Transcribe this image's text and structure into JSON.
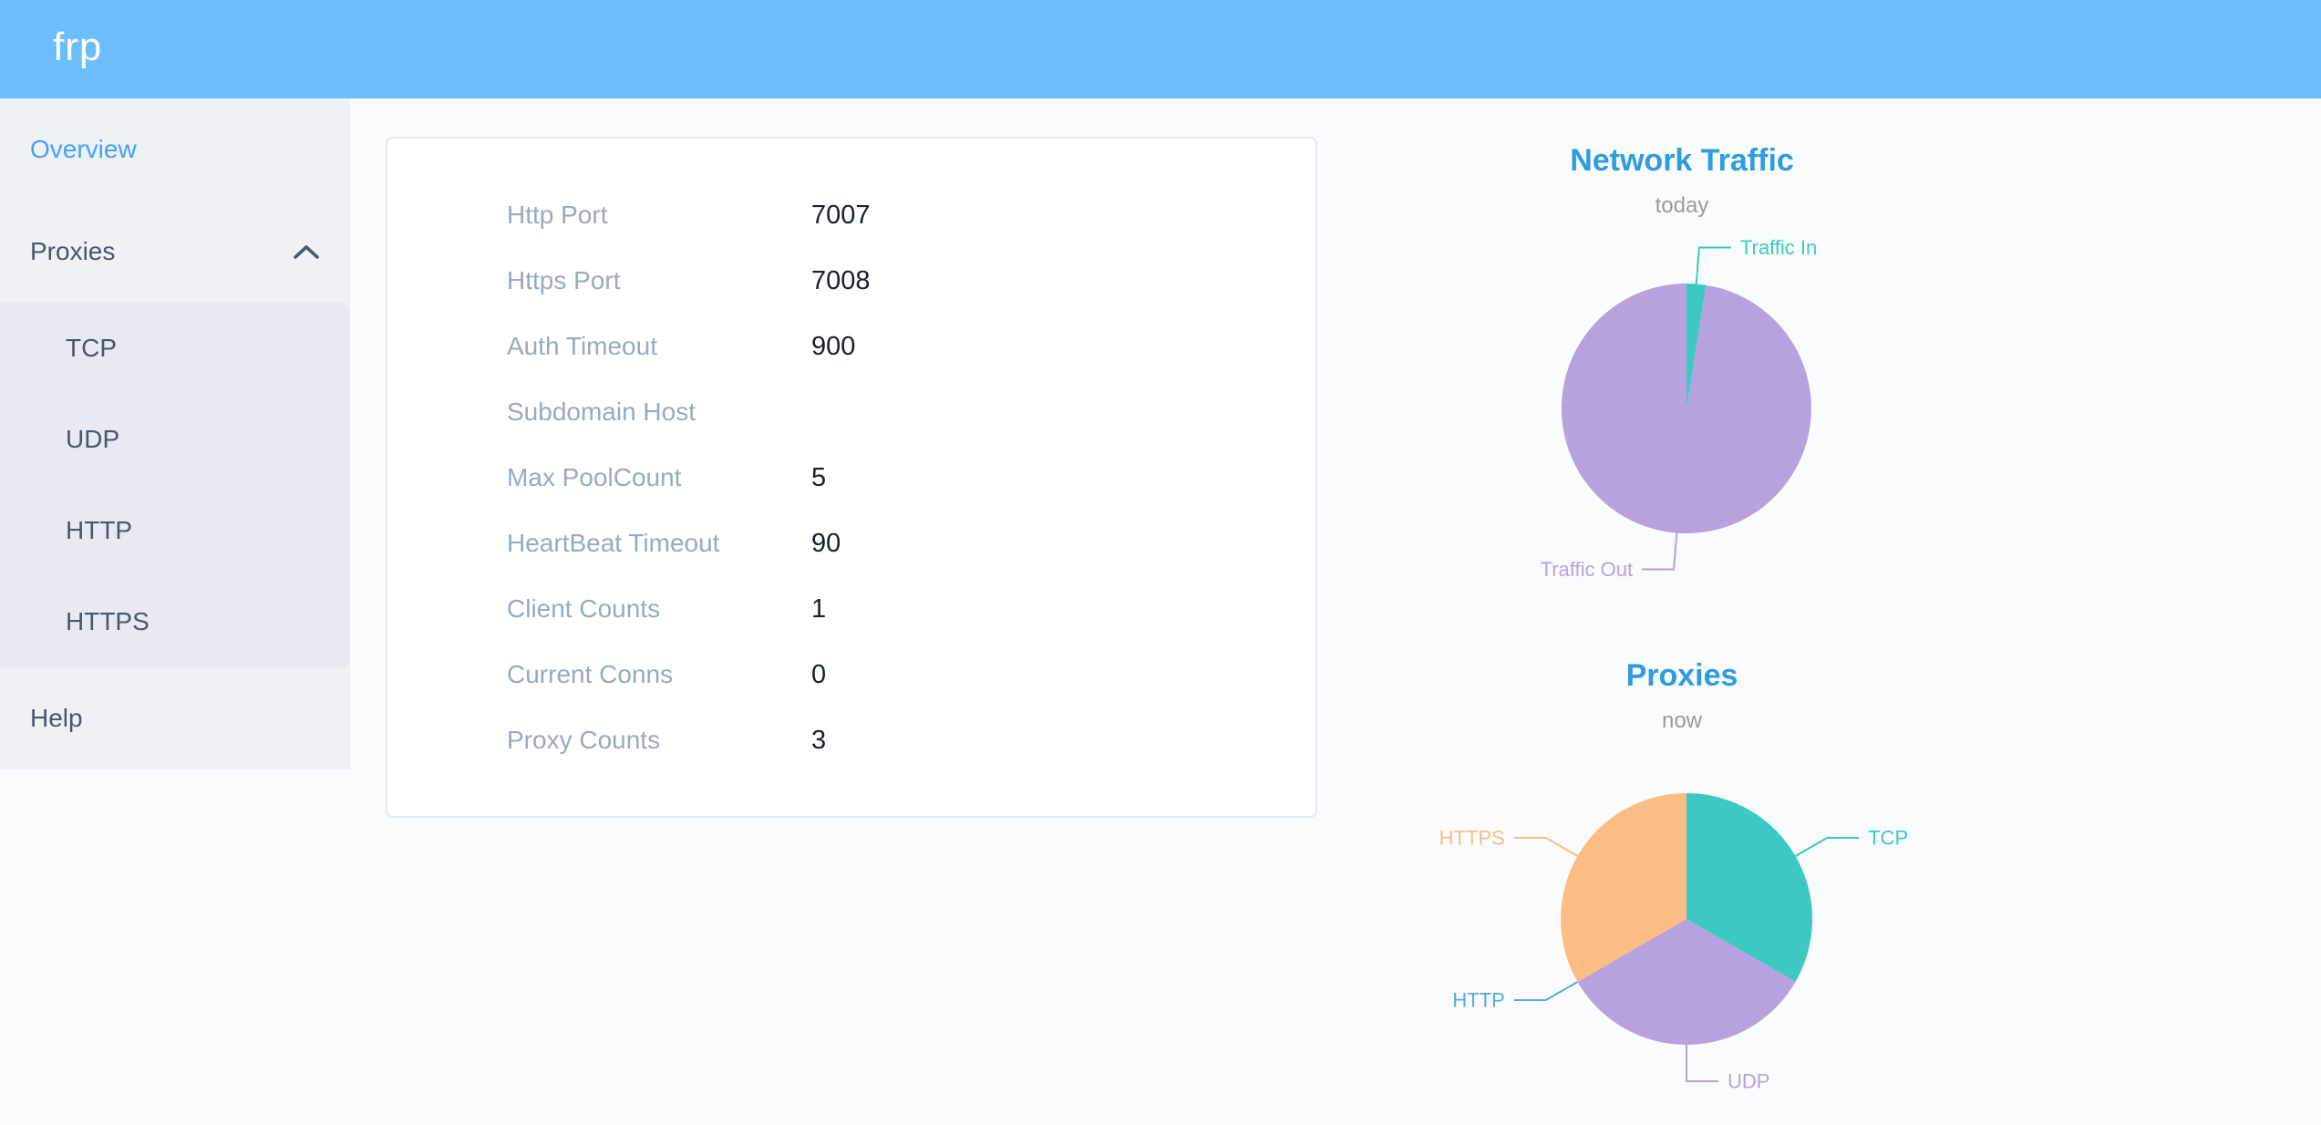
{
  "header": {
    "logo": "frp"
  },
  "sidebar": {
    "items": [
      {
        "label": "Overview",
        "active": true
      },
      {
        "label": "Proxies",
        "expanded": true,
        "children": [
          {
            "label": "TCP"
          },
          {
            "label": "UDP"
          },
          {
            "label": "HTTP"
          },
          {
            "label": "HTTPS"
          }
        ]
      },
      {
        "label": "Help"
      }
    ]
  },
  "overview_card": {
    "fields": [
      {
        "label": "Http Port",
        "value": "7007"
      },
      {
        "label": "Https Port",
        "value": "7008"
      },
      {
        "label": "Auth Timeout",
        "value": "900"
      },
      {
        "label": "Subdomain Host",
        "value": ""
      },
      {
        "label": "Max PoolCount",
        "value": "5"
      },
      {
        "label": "HeartBeat Timeout",
        "value": "90"
      },
      {
        "label": "Client Counts",
        "value": "1"
      },
      {
        "label": "Current Conns",
        "value": "0"
      },
      {
        "label": "Proxy Counts",
        "value": "3"
      }
    ]
  },
  "chart_data": [
    {
      "type": "pie",
      "title": "Network Traffic",
      "subtitle": "today",
      "labels": [
        "Traffic In",
        "Traffic Out"
      ],
      "values": [
        2.5,
        97.5
      ],
      "values_are": "percent_of_circle_estimate",
      "colors": [
        "#3ec8c3",
        "#b6a2de"
      ],
      "label_position": "outside",
      "legend": "none"
    },
    {
      "type": "pie",
      "title": "Proxies",
      "subtitle": "now",
      "labels": [
        "TCP",
        "UDP",
        "HTTP",
        "HTTPS"
      ],
      "values": [
        1,
        1,
        0,
        1
      ],
      "values_are": "proxy_count",
      "colors": [
        "#3ec8c3",
        "#b6a2de",
        "#56a9ec",
        "#fbbd84"
      ],
      "label_position": "outside",
      "legend": "none"
    }
  ]
}
